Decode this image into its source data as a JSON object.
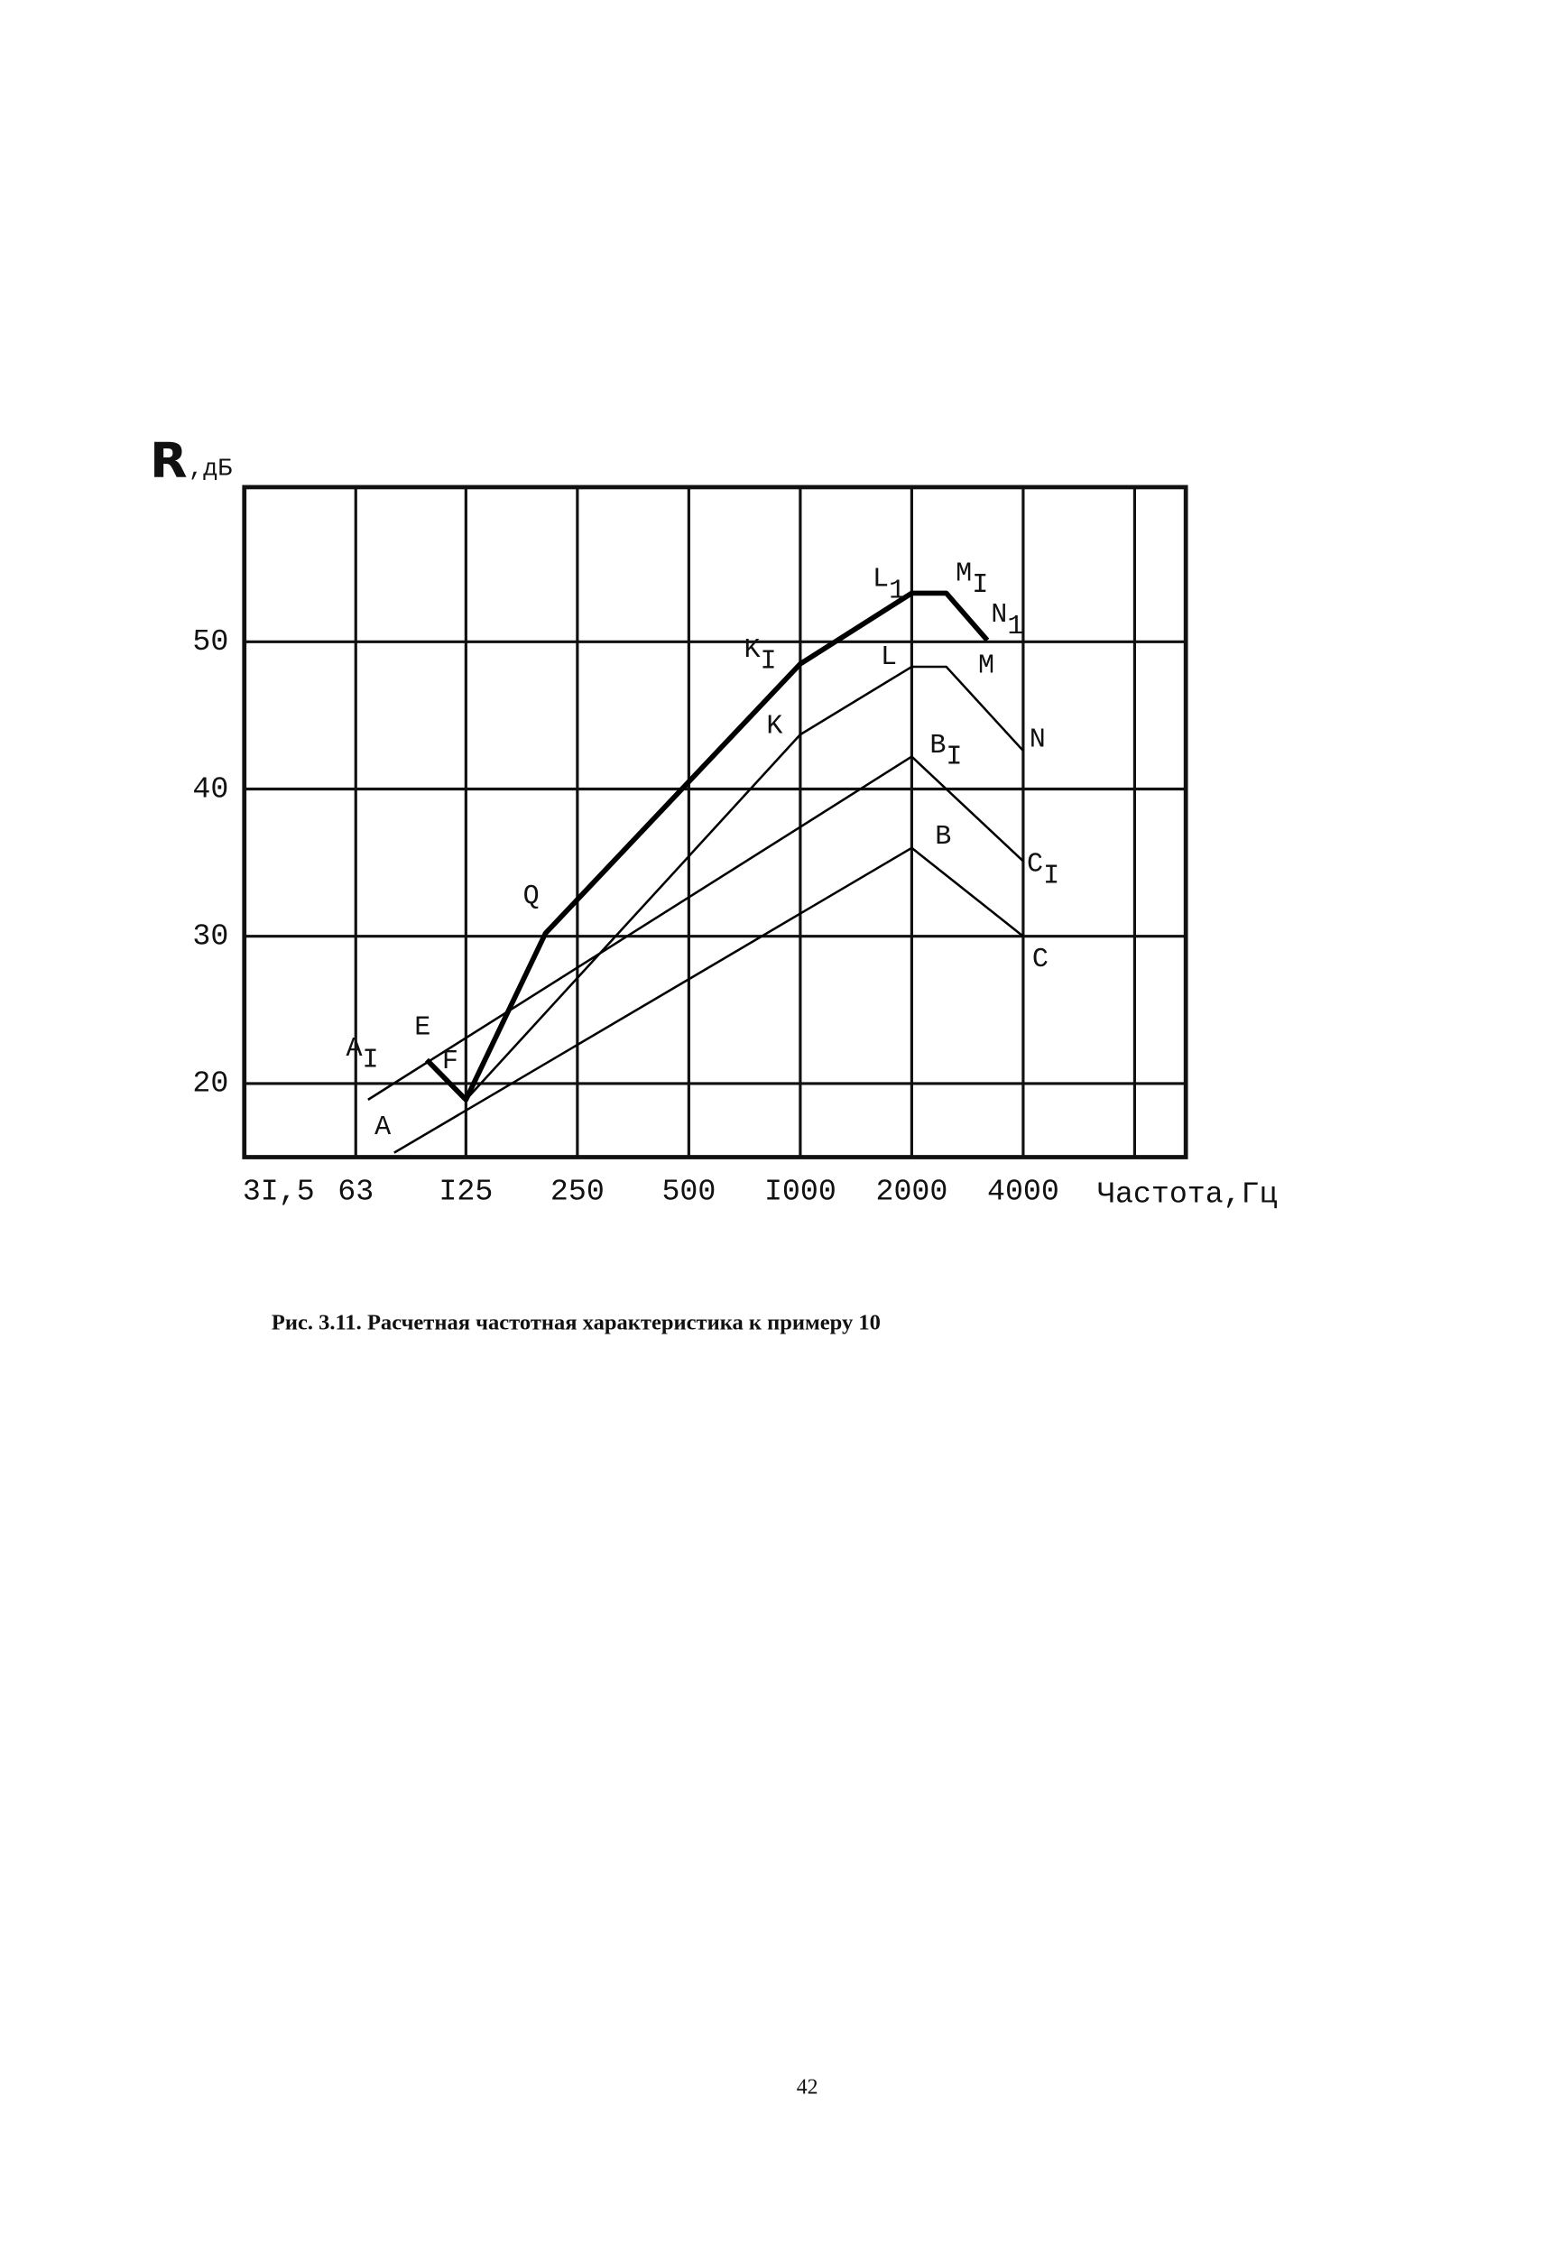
{
  "chart_data": {
    "type": "line",
    "ylabel": "R",
    "ylabel_unit": ",дБ",
    "xlabel": "Частота,Гц",
    "caption": "Рис. 3.11. Расчетная частотная характеристика к примеру 10",
    "page_number": "42",
    "xscale": "log",
    "xlim": [
      31.5,
      11000
    ],
    "ylim": [
      15,
      60.5
    ],
    "xticks": [
      {
        "value": 31.5,
        "label": "3I,5"
      },
      63,
      {
        "value": 125,
        "label": "I25"
      },
      250,
      500,
      {
        "value": 1000,
        "label": "I000"
      },
      2000,
      4000
    ],
    "xgrid": [
      63,
      125,
      250,
      500,
      1000,
      2000,
      4000,
      8000
    ],
    "yticks": [
      20,
      30,
      40,
      50
    ],
    "grid": true,
    "series": [
      {
        "color": "#000000",
        "line_width": 1.6,
        "x": [
          80,
          2000,
          4000
        ],
        "values": [
          15.3,
          36,
          30
        ],
        "point_labels": [
          "A",
          "B",
          "C"
        ]
      },
      {
        "color": "#000000",
        "line_width": 1.6,
        "x": [
          68,
          2000,
          4000
        ],
        "values": [
          18.9,
          42.2,
          35.1
        ],
        "point_labels": [
          {
            "text": "A",
            "sub": "I"
          },
          {
            "text": "B",
            "sub": "I"
          },
          {
            "text": "C",
            "sub": "I"
          }
        ]
      },
      {
        "color": "#000000",
        "line_width": 1.6,
        "x": [
          98,
          125,
          1000,
          2000,
          2480,
          4000
        ],
        "values": [
          21.6,
          18.9,
          43.7,
          48.3,
          48.3,
          42.6
        ],
        "point_labels": [
          "E",
          "F",
          "K",
          "L",
          "M",
          "N"
        ]
      },
      {
        "color": "#000000",
        "line_width": 3.6,
        "x": [
          98,
          125,
          205,
          1000,
          2000,
          2480,
          3200
        ],
        "values": [
          21.6,
          18.9,
          30.2,
          48.5,
          53.3,
          53.3,
          50.1
        ],
        "point_labels": [
          null,
          null,
          "Q",
          {
            "text": "K",
            "sub": "I"
          },
          {
            "text": "L",
            "sub": "1"
          },
          {
            "text": "M",
            "sub": "I"
          },
          {
            "text": "N",
            "sub": "1"
          }
        ]
      }
    ]
  }
}
